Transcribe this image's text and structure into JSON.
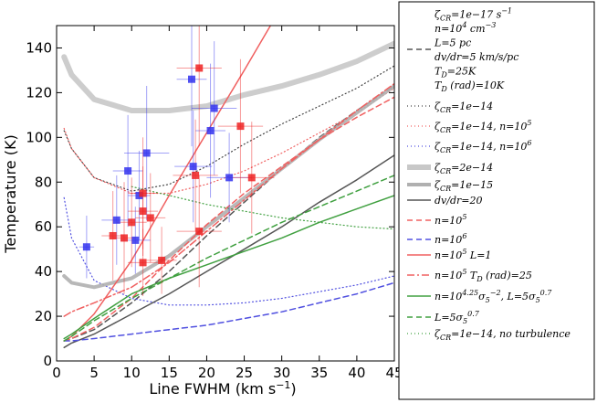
{
  "chart_data": {
    "type": "scatter",
    "xlabel": "Line FWHM (km s",
    "xlabel_unit_sup": "−1",
    "xlabel_close": ")",
    "ylabel": "Temperature (K)",
    "xlim": [
      0,
      45
    ],
    "ylim": [
      0,
      150
    ],
    "xticks": [
      0,
      5,
      10,
      15,
      20,
      25,
      30,
      35,
      40,
      45
    ],
    "yticks": [
      0,
      20,
      40,
      60,
      80,
      100,
      120,
      140
    ],
    "grid": false,
    "legend_position": "right, outside plot",
    "points_blue": [
      {
        "x": 4.0,
        "y": 51,
        "xerr": 1.0,
        "yerr": 14
      },
      {
        "x": 8.0,
        "y": 63,
        "xerr": 2.0,
        "yerr": 20
      },
      {
        "x": 9.5,
        "y": 85,
        "xerr": 2.0,
        "yerr": 25
      },
      {
        "x": 10.5,
        "y": 54,
        "xerr": 2.0,
        "yerr": 15
      },
      {
        "x": 11.0,
        "y": 74,
        "xerr": 1.5,
        "yerr": 20
      },
      {
        "x": 12.0,
        "y": 93,
        "xerr": 3.0,
        "yerr": 30
      },
      {
        "x": 18.0,
        "y": 126,
        "xerr": 2.0,
        "yerr": 30
      },
      {
        "x": 18.2,
        "y": 87,
        "xerr": 2.5,
        "yerr": 25
      },
      {
        "x": 20.5,
        "y": 103,
        "xerr": 2.0,
        "yerr": 30
      },
      {
        "x": 21.0,
        "y": 113,
        "xerr": 3.0,
        "yerr": 30
      },
      {
        "x": 23.0,
        "y": 82,
        "xerr": 3.0,
        "yerr": 20
      }
    ],
    "points_red": [
      {
        "x": 7.5,
        "y": 56,
        "xerr": 1.5,
        "yerr": 20
      },
      {
        "x": 9.0,
        "y": 55,
        "xerr": 1.5,
        "yerr": 25
      },
      {
        "x": 10.0,
        "y": 62,
        "xerr": 2.0,
        "yerr": 20
      },
      {
        "x": 11.5,
        "y": 75,
        "xerr": 2.0,
        "yerr": 25
      },
      {
        "x": 11.5,
        "y": 67,
        "xerr": 2.0,
        "yerr": 20
      },
      {
        "x": 11.5,
        "y": 44,
        "xerr": 2.0,
        "yerr": 15
      },
      {
        "x": 12.5,
        "y": 64,
        "xerr": 2.0,
        "yerr": 20
      },
      {
        "x": 14.0,
        "y": 45,
        "xerr": 2.0,
        "yerr": 15
      },
      {
        "x": 18.5,
        "y": 83,
        "xerr": 3.0,
        "yerr": 25
      },
      {
        "x": 19.0,
        "y": 131,
        "xerr": 3.0,
        "yerr": 35
      },
      {
        "x": 19.0,
        "y": 58,
        "xerr": 3.0,
        "yerr": 25
      },
      {
        "x": 24.5,
        "y": 105,
        "xerr": 3.0,
        "yerr": 30
      },
      {
        "x": 26.0,
        "y": 82,
        "xerr": 3.0,
        "yerr": 25
      }
    ],
    "series": [
      {
        "name": "ζCR=1e−17 s−1, n=10^4 cm−3, L=5 pc, dv/dr=5 km/s/pc, TD=25K, TD(rad)=10K",
        "color": "#555555",
        "dash": "6,4",
        "width": 1.5,
        "x": [
          1,
          2,
          5,
          10,
          15,
          20,
          25,
          30,
          35,
          40,
          45
        ],
        "y": [
          9,
          10,
          14,
          26,
          40,
          56,
          71,
          86,
          100,
          112,
          123
        ]
      },
      {
        "name": "ζCR=1e−14",
        "color": "#444444",
        "dash": "1,3",
        "width": 1.2,
        "x": [
          1,
          2,
          5,
          10,
          15,
          20,
          25,
          30,
          35,
          40,
          45
        ],
        "y": [
          103,
          95,
          82,
          76,
          79,
          87,
          97,
          106,
          114,
          122,
          132
        ]
      },
      {
        "name": "ζCR=1e−14, n=10^5",
        "color": "#f06060",
        "dash": "1,3",
        "width": 1.2,
        "x": [
          1,
          2,
          5,
          10,
          15,
          20,
          25,
          30,
          35,
          40,
          45
        ],
        "y": [
          104,
          95,
          82,
          75,
          75,
          79,
          85,
          93,
          102,
          111,
          122
        ]
      },
      {
        "name": "ζCR=1e−14, n=10^6",
        "color": "#5050e0",
        "dash": "1,3",
        "width": 1.2,
        "x": [
          1,
          2,
          5,
          10,
          15,
          20,
          25,
          30,
          35,
          40,
          45
        ],
        "y": [
          73,
          55,
          36,
          28,
          25,
          25,
          26,
          28,
          31,
          34,
          38
        ]
      },
      {
        "name": "ζCR=2e−14",
        "color": "#c8c8c8",
        "dash": "",
        "width": 6,
        "x": [
          1,
          2,
          5,
          10,
          15,
          20,
          25,
          30,
          35,
          40,
          45
        ],
        "y": [
          136,
          128,
          117,
          112,
          112,
          114,
          119,
          123,
          128,
          134,
          142
        ]
      },
      {
        "name": "ζCR=1e−15",
        "color": "#b0b0b0",
        "dash": "",
        "width": 4,
        "x": [
          1,
          2,
          5,
          10,
          15,
          20,
          25,
          30,
          35,
          40,
          45
        ],
        "y": [
          38,
          35,
          33,
          37,
          47,
          60,
          73,
          86,
          99,
          111,
          123
        ]
      },
      {
        "name": "dv/dr=20",
        "color": "#555555",
        "dash": "",
        "width": 1.5,
        "x": [
          1,
          2,
          5,
          10,
          15,
          20,
          25,
          30,
          35,
          40,
          45
        ],
        "y": [
          6,
          8,
          12,
          21,
          30,
          40,
          50,
          60,
          71,
          81,
          92
        ]
      },
      {
        "name": "n=10^5",
        "color": "#f06060",
        "dash": "6,4",
        "width": 1.5,
        "x": [
          1,
          2,
          5,
          10,
          15,
          20,
          25,
          30,
          35,
          40,
          45
        ],
        "y": [
          9,
          10,
          15,
          28,
          45,
          61,
          75,
          87,
          99,
          109,
          118
        ]
      },
      {
        "name": "n=10^6",
        "color": "#5050e0",
        "dash": "6,4",
        "width": 1.5,
        "x": [
          1,
          2,
          5,
          10,
          15,
          20,
          25,
          30,
          35,
          40,
          45
        ],
        "y": [
          9,
          9,
          10,
          12,
          14,
          16,
          19,
          22,
          26,
          30,
          35
        ]
      },
      {
        "name": "n=10^5 L=1",
        "color": "#f06060",
        "dash": "",
        "width": 1.5,
        "x": [
          1,
          2,
          5,
          10,
          15,
          20,
          25,
          28.5
        ],
        "y": [
          9,
          11,
          21,
          45,
          74,
          102,
          130,
          150
        ]
      },
      {
        "name": "n=10^5 TD(rad)=25",
        "color": "#f06060",
        "dash": "8,3,2,3",
        "width": 1.5,
        "x": [
          1,
          2,
          5,
          10,
          15,
          20,
          25,
          30,
          35,
          40,
          45
        ],
        "y": [
          20,
          22,
          26,
          33,
          44,
          58,
          72,
          86,
          99,
          112,
          124
        ]
      },
      {
        "name": "n=10^4.25 σ5^−2, L=5σ5^0.7",
        "color": "#40a040",
        "dash": "",
        "width": 1.5,
        "x": [
          1,
          2,
          5,
          10,
          15,
          20,
          25,
          30,
          35,
          40,
          45
        ],
        "y": [
          10,
          12,
          19,
          30,
          37,
          43,
          49,
          55,
          62,
          68,
          74
        ]
      },
      {
        "name": "L=5σ5^0.7",
        "color": "#40a040",
        "dash": "6,4",
        "width": 1.5,
        "x": [
          1,
          2,
          5,
          10,
          15,
          20,
          25,
          30,
          35,
          40,
          45
        ],
        "y": [
          9,
          11,
          18,
          28,
          37,
          46,
          54,
          62,
          69,
          76,
          83
        ]
      },
      {
        "name": "ζCR=1e−14, no turbulence",
        "color": "#40a040",
        "dash": "1,3",
        "width": 1.2,
        "x": [
          10,
          15,
          20,
          25,
          30,
          35,
          40,
          45
        ],
        "y": [
          78,
          74,
          70,
          67,
          64,
          62,
          60,
          59
        ]
      }
    ]
  }
}
